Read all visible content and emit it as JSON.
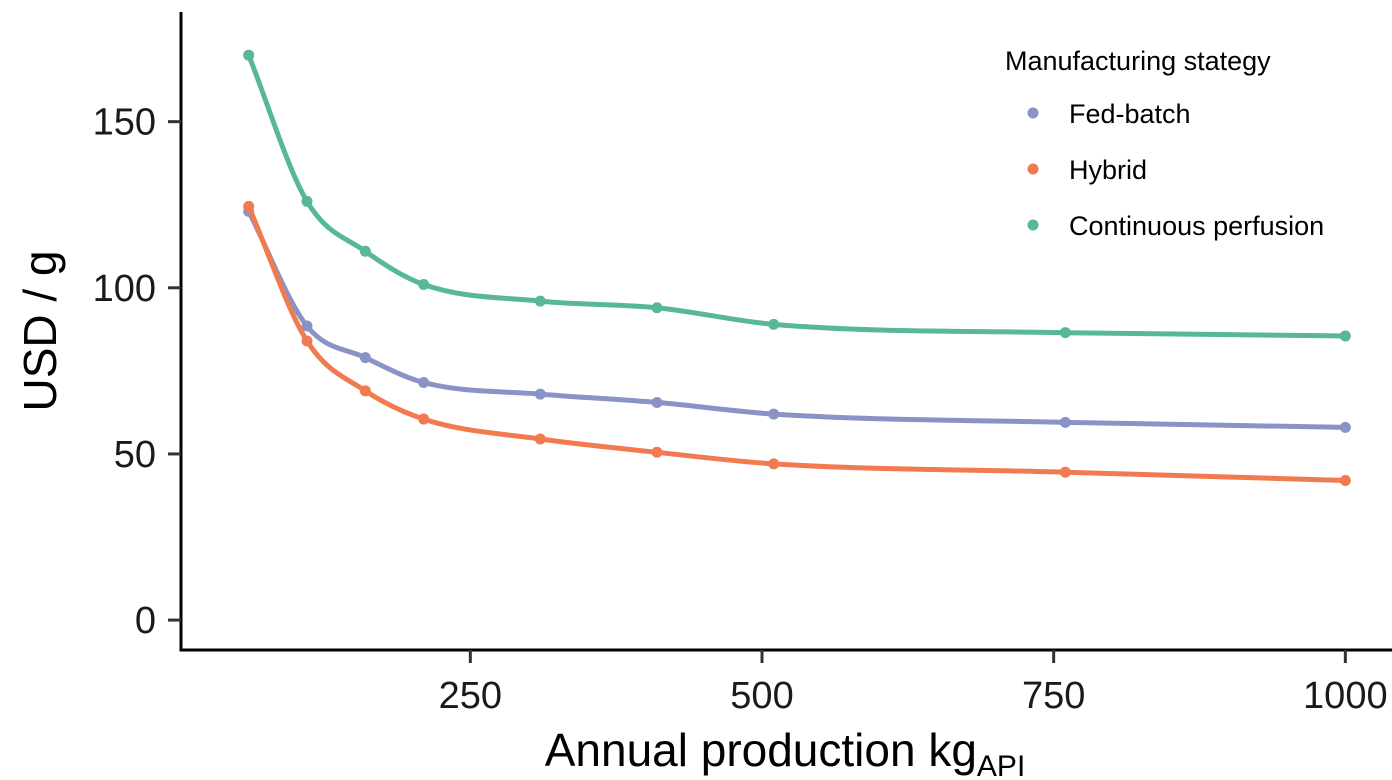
{
  "chart_data": {
    "type": "line",
    "xlabel_main": "Annual production kg",
    "xlabel_sub": "API",
    "ylabel": "USD / g",
    "x_ticks": [
      250,
      500,
      750,
      1000
    ],
    "y_ticks": [
      0,
      50,
      100,
      150
    ],
    "xlim": [
      2,
      1040
    ],
    "ylim": [
      -9,
      183
    ],
    "grid": false,
    "legend_title": "Manufacturing stategy",
    "legend_position": "top-right",
    "x": [
      60,
      110,
      160,
      210,
      310,
      410,
      510,
      760,
      1000
    ],
    "series": [
      {
        "name": "Fed-batch",
        "color": "#8A93C6",
        "values": [
          123,
          88.5,
          79,
          71.5,
          68,
          65.5,
          62,
          59.5,
          58
        ]
      },
      {
        "name": "Hybrid",
        "color": "#F27A50",
        "values": [
          124.5,
          84,
          69,
          60.5,
          54.5,
          50.5,
          47,
          44.5,
          42
        ]
      },
      {
        "name": "Continuous perfusion",
        "color": "#58B894",
        "values": [
          170,
          126,
          111,
          101,
          96,
          94,
          89,
          86.5,
          85.5
        ]
      }
    ]
  }
}
